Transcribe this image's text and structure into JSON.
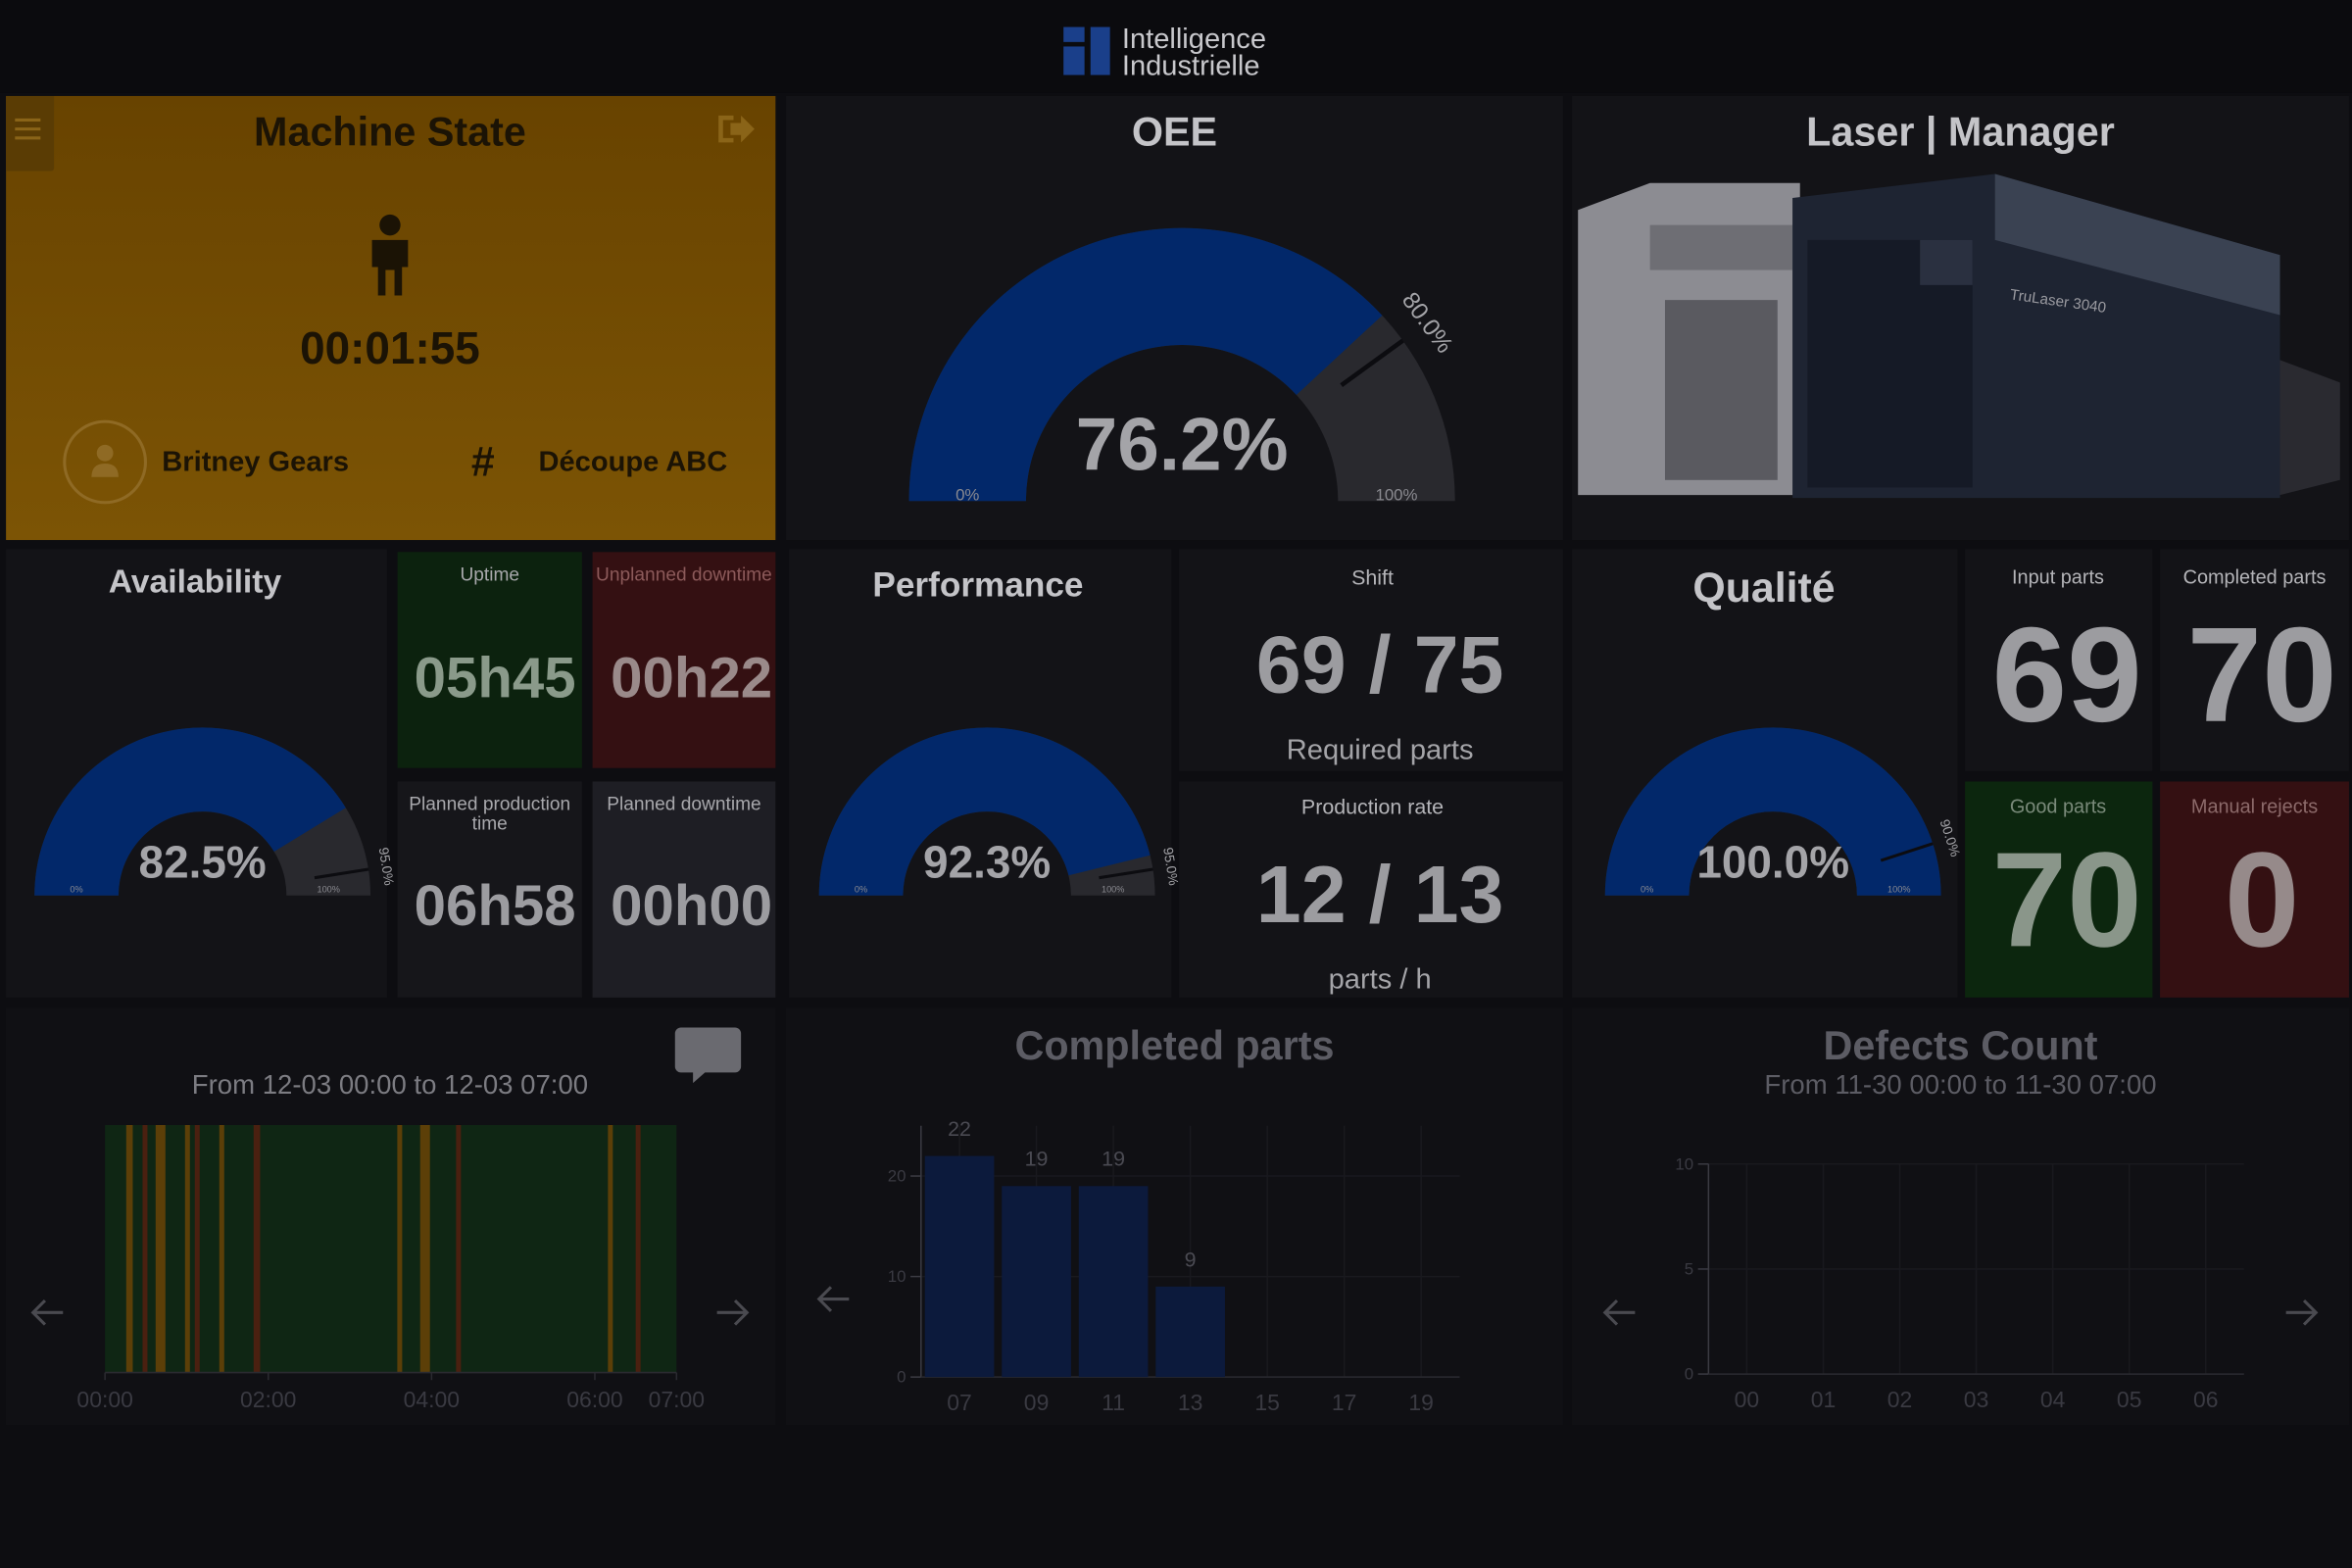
{
  "header": {
    "logo_line1": "Intelligence",
    "logo_line2": "Industrielle"
  },
  "machine_state": {
    "title": "Machine State",
    "timer": "00:01:55",
    "operator": "Britney Gears",
    "job_symbol": "#",
    "job": "Découpe ABC"
  },
  "oee": {
    "title": "OEE",
    "value": 76.2,
    "value_label": "76.2%",
    "target": 80.0,
    "target_label": "80.0%",
    "min": 0,
    "max": 100,
    "min_label": "0%",
    "max_label": "100%"
  },
  "laser": {
    "title": "Laser | Manager",
    "machine_label": "TruLaser 3040"
  },
  "availability": {
    "title": "Availability",
    "value": 82.5,
    "value_label": "82.5%",
    "target": 95.0,
    "target_label": "95.0%",
    "min": 0,
    "max": 100,
    "min_label": "0%",
    "max_label": "100%"
  },
  "availability_tiles": [
    {
      "title": "Uptime",
      "value": "05h45"
    },
    {
      "title": "Unplanned downtime",
      "value": "00h22"
    },
    {
      "title": "Planned production time",
      "value": "06h58"
    },
    {
      "title": "Planned downtime",
      "value": "00h00"
    }
  ],
  "performance": {
    "title": "Performance",
    "value": 92.3,
    "value_label": "92.3%",
    "target": 95.0,
    "target_label": "95.0%",
    "min": 0,
    "max": 100,
    "min_label": "0%",
    "max_label": "100%"
  },
  "shift": {
    "title": "Shift",
    "value": "69 / 75",
    "caption": "Required parts"
  },
  "production_rate": {
    "title": "Production rate",
    "value": "12 / 13",
    "caption": "parts / h"
  },
  "quality": {
    "title": "Qualité",
    "value": 100.0,
    "value_label": "100.0%",
    "target": 90.0,
    "target_label": "90.0%",
    "min": 0,
    "max": 100,
    "min_label": "0%",
    "max_label": "100%"
  },
  "counts": [
    {
      "title": "Input parts",
      "value": 69
    },
    {
      "title": "Completed parts",
      "value": 70
    },
    {
      "title": "Good parts",
      "value": 70
    },
    {
      "title": "Manual rejects",
      "value": 0
    }
  ],
  "timeline": {
    "subtitle": "From 12-03 00:00 to 12-03 07:00",
    "xlim": [
      0,
      7
    ],
    "xticks": [
      {
        "value": 0,
        "label": "00:00"
      },
      {
        "value": 2,
        "label": "02:00"
      },
      {
        "value": 4,
        "label": "04:00"
      },
      {
        "value": 6,
        "label": "06:00"
      },
      {
        "value": 7,
        "label": "07:00"
      }
    ],
    "base_color": "#0f2614",
    "segments": [
      {
        "start": 0.26,
        "end": 0.34,
        "color": "#5c3f08"
      },
      {
        "start": 0.46,
        "end": 0.52,
        "color": "#4a2010"
      },
      {
        "start": 0.62,
        "end": 0.74,
        "color": "#5c3f08"
      },
      {
        "start": 0.98,
        "end": 1.04,
        "color": "#5c3f08"
      },
      {
        "start": 1.1,
        "end": 1.16,
        "color": "#4a2010"
      },
      {
        "start": 1.4,
        "end": 1.46,
        "color": "#5c3f08"
      },
      {
        "start": 1.82,
        "end": 1.9,
        "color": "#4a2010"
      },
      {
        "start": 3.58,
        "end": 3.64,
        "color": "#5c3f08"
      },
      {
        "start": 3.86,
        "end": 3.98,
        "color": "#5c3f08"
      },
      {
        "start": 4.3,
        "end": 4.36,
        "color": "#4a2010"
      },
      {
        "start": 6.16,
        "end": 6.22,
        "color": "#5c3f08"
      },
      {
        "start": 6.5,
        "end": 6.56,
        "color": "#4a2010"
      }
    ]
  },
  "completed_chart": {
    "type": "bar",
    "title": "Completed parts",
    "categories": [
      "07",
      "09",
      "11",
      "13",
      "15",
      "17",
      "19"
    ],
    "values": [
      22,
      19,
      19,
      9,
      null,
      null,
      null
    ],
    "color": "#0c1a3c",
    "ylim": [
      0,
      25
    ],
    "yticks": [
      0,
      10,
      20
    ]
  },
  "defects_chart": {
    "type": "line",
    "title": "Defects Count",
    "subtitle": "From 11-30 00:00 to 11-30 07:00",
    "categories": [
      "00",
      "01",
      "02",
      "03",
      "04",
      "05",
      "06"
    ],
    "ylim": [
      0,
      10
    ],
    "yticks": [
      0,
      5,
      10
    ]
  }
}
